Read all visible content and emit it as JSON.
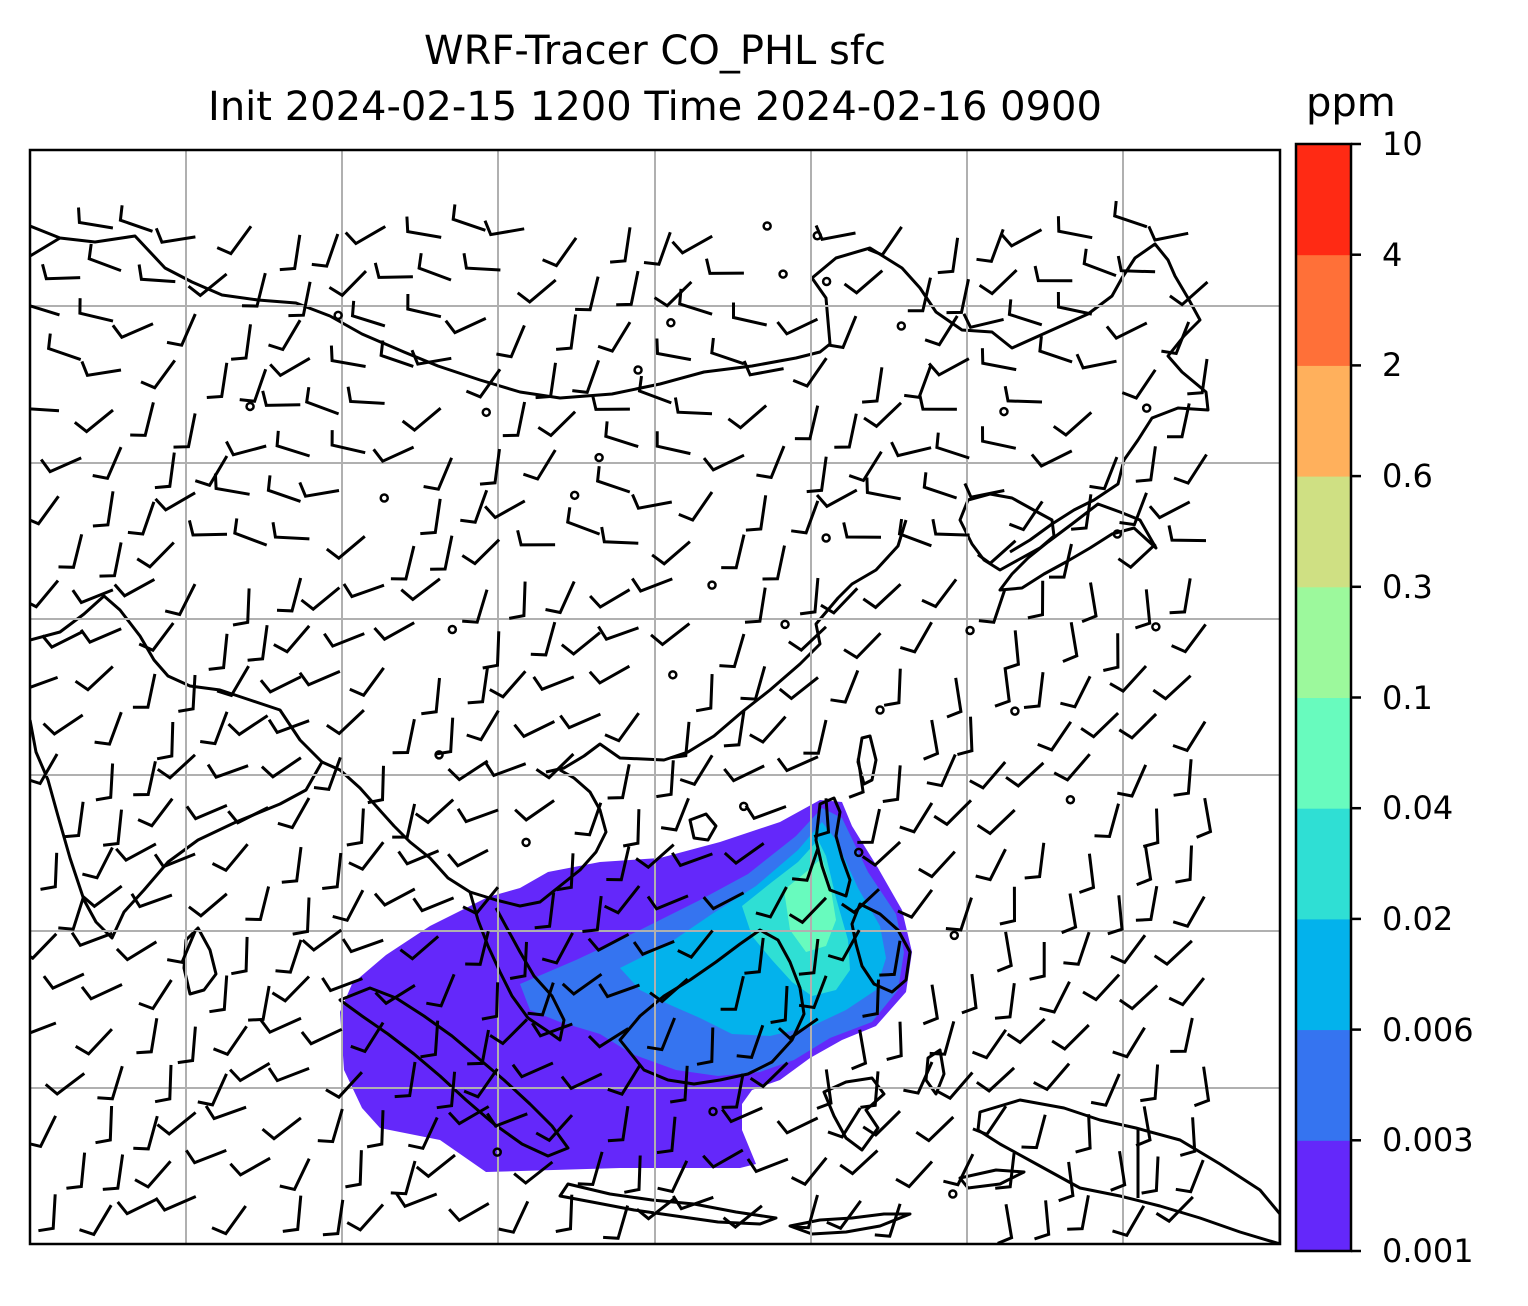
{
  "title": {
    "line1": "WRF-Tracer CO_PHL sfc",
    "line2": "Init 2024-02-15 1200 Time 2024-02-16 0900"
  },
  "colorbar": {
    "unit": "ppm",
    "levels": [
      "0.001",
      "0.003",
      "0.006",
      "0.02",
      "0.04",
      "0.1",
      "0.3",
      "0.6",
      "2",
      "4",
      "10"
    ],
    "colors": [
      "#6428fa",
      "#3574f0",
      "#03b2ec",
      "#2fdfd4",
      "#68fbbe",
      "#9cf99c",
      "#cfe083",
      "#ffb05c",
      "#ff7038",
      "#ff2a14"
    ]
  },
  "map": {
    "gridlines": true,
    "coastline_color": "#000000",
    "wind_barbs": true,
    "calm_wind_marker": "circle"
  },
  "chart_data": {
    "type": "heatmap",
    "variable": "CO_PHL surface tracer concentration",
    "units": "ppm",
    "contour_levels": [
      0.001,
      0.003,
      0.006,
      0.02,
      0.04,
      0.1,
      0.3,
      0.6,
      2,
      4,
      10
    ],
    "max_visible_level_band": [
      0.02,
      0.04
    ],
    "overlay": "wind barbs"
  }
}
